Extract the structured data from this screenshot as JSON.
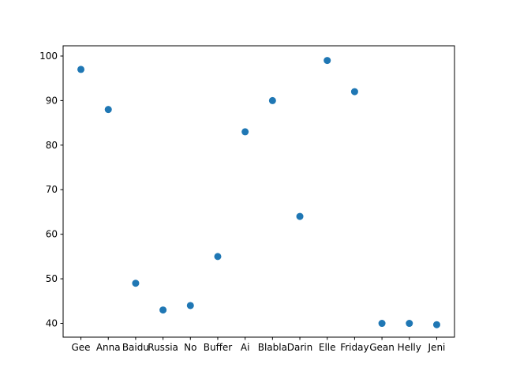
{
  "chart_data": {
    "type": "scatter",
    "title": "",
    "xlabel": "",
    "ylabel": "",
    "categories": [
      "Gee",
      "Anna",
      "Baidu",
      "Russia",
      "No",
      "Buffer",
      "Ai",
      "Blabla",
      "Darin",
      "Elle",
      "Friday",
      "Gean",
      "Helly",
      "Jeni"
    ],
    "values": [
      97,
      88,
      49,
      43,
      44,
      55,
      83,
      90,
      64,
      99,
      92,
      40,
      40,
      39.7
    ],
    "ylim": [
      36.9,
      102.3
    ],
    "yticks": [
      40,
      50,
      60,
      70,
      80,
      90,
      100
    ],
    "ytick_labels": [
      "40",
      "50",
      "60",
      "70",
      "80",
      "90",
      "100"
    ],
    "grid": false,
    "legend": "none",
    "marker_color": "#1f77b4"
  }
}
